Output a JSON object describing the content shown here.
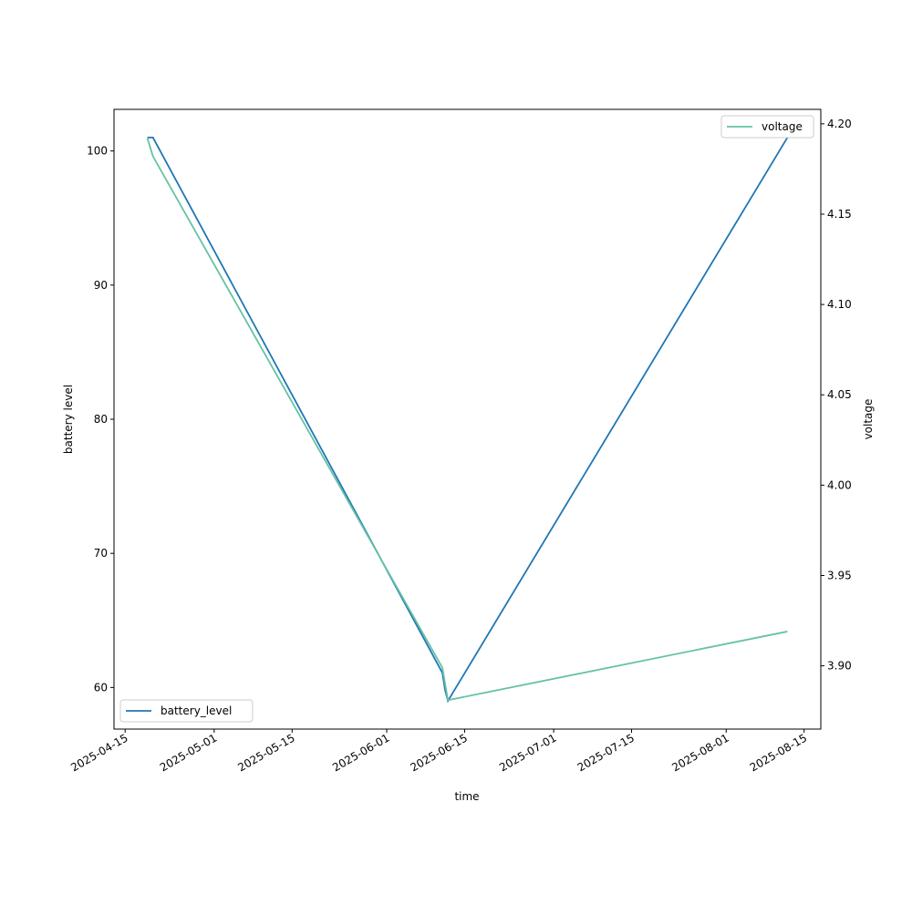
{
  "chart_data": {
    "type": "line",
    "xlabel": "time",
    "ylabel": "battery level",
    "y2label": "voltage",
    "xlim": [
      "2025-04-13",
      "2025-08-18"
    ],
    "ylim": [
      56.9,
      103.1
    ],
    "y2lim": [
      3.865,
      4.208
    ],
    "xticks": [
      "2025-04-15",
      "2025-05-01",
      "2025-05-15",
      "2025-06-01",
      "2025-06-15",
      "2025-07-01",
      "2025-07-15",
      "2025-08-01",
      "2025-08-15"
    ],
    "yticks": [
      "60",
      "70",
      "80",
      "90",
      "100"
    ],
    "y2ticks": [
      "3.90",
      "3.95",
      "4.00",
      "4.05",
      "4.10",
      "4.15",
      "4.20"
    ],
    "grid": false,
    "series": [
      {
        "name": "battery_level",
        "axis": "left",
        "color": "#1f77b4",
        "legend": "lower-left",
        "x": [
          "2025-04-19",
          "2025-04-20",
          "2025-06-11",
          "2025-06-11T12:00",
          "2025-06-12",
          "2025-08-12"
        ],
        "y": [
          101,
          101,
          61.1,
          59.8,
          59,
          101
        ]
      },
      {
        "name": "voltage",
        "axis": "right",
        "color": "#66c2a5",
        "legend": "upper-right",
        "x": [
          "2025-04-19",
          "2025-04-20",
          "2025-06-11",
          "2025-06-11T12:00",
          "2025-06-12",
          "2025-08-12"
        ],
        "y": [
          4.192,
          4.182,
          3.899,
          3.89,
          3.881,
          3.919
        ]
      }
    ]
  }
}
